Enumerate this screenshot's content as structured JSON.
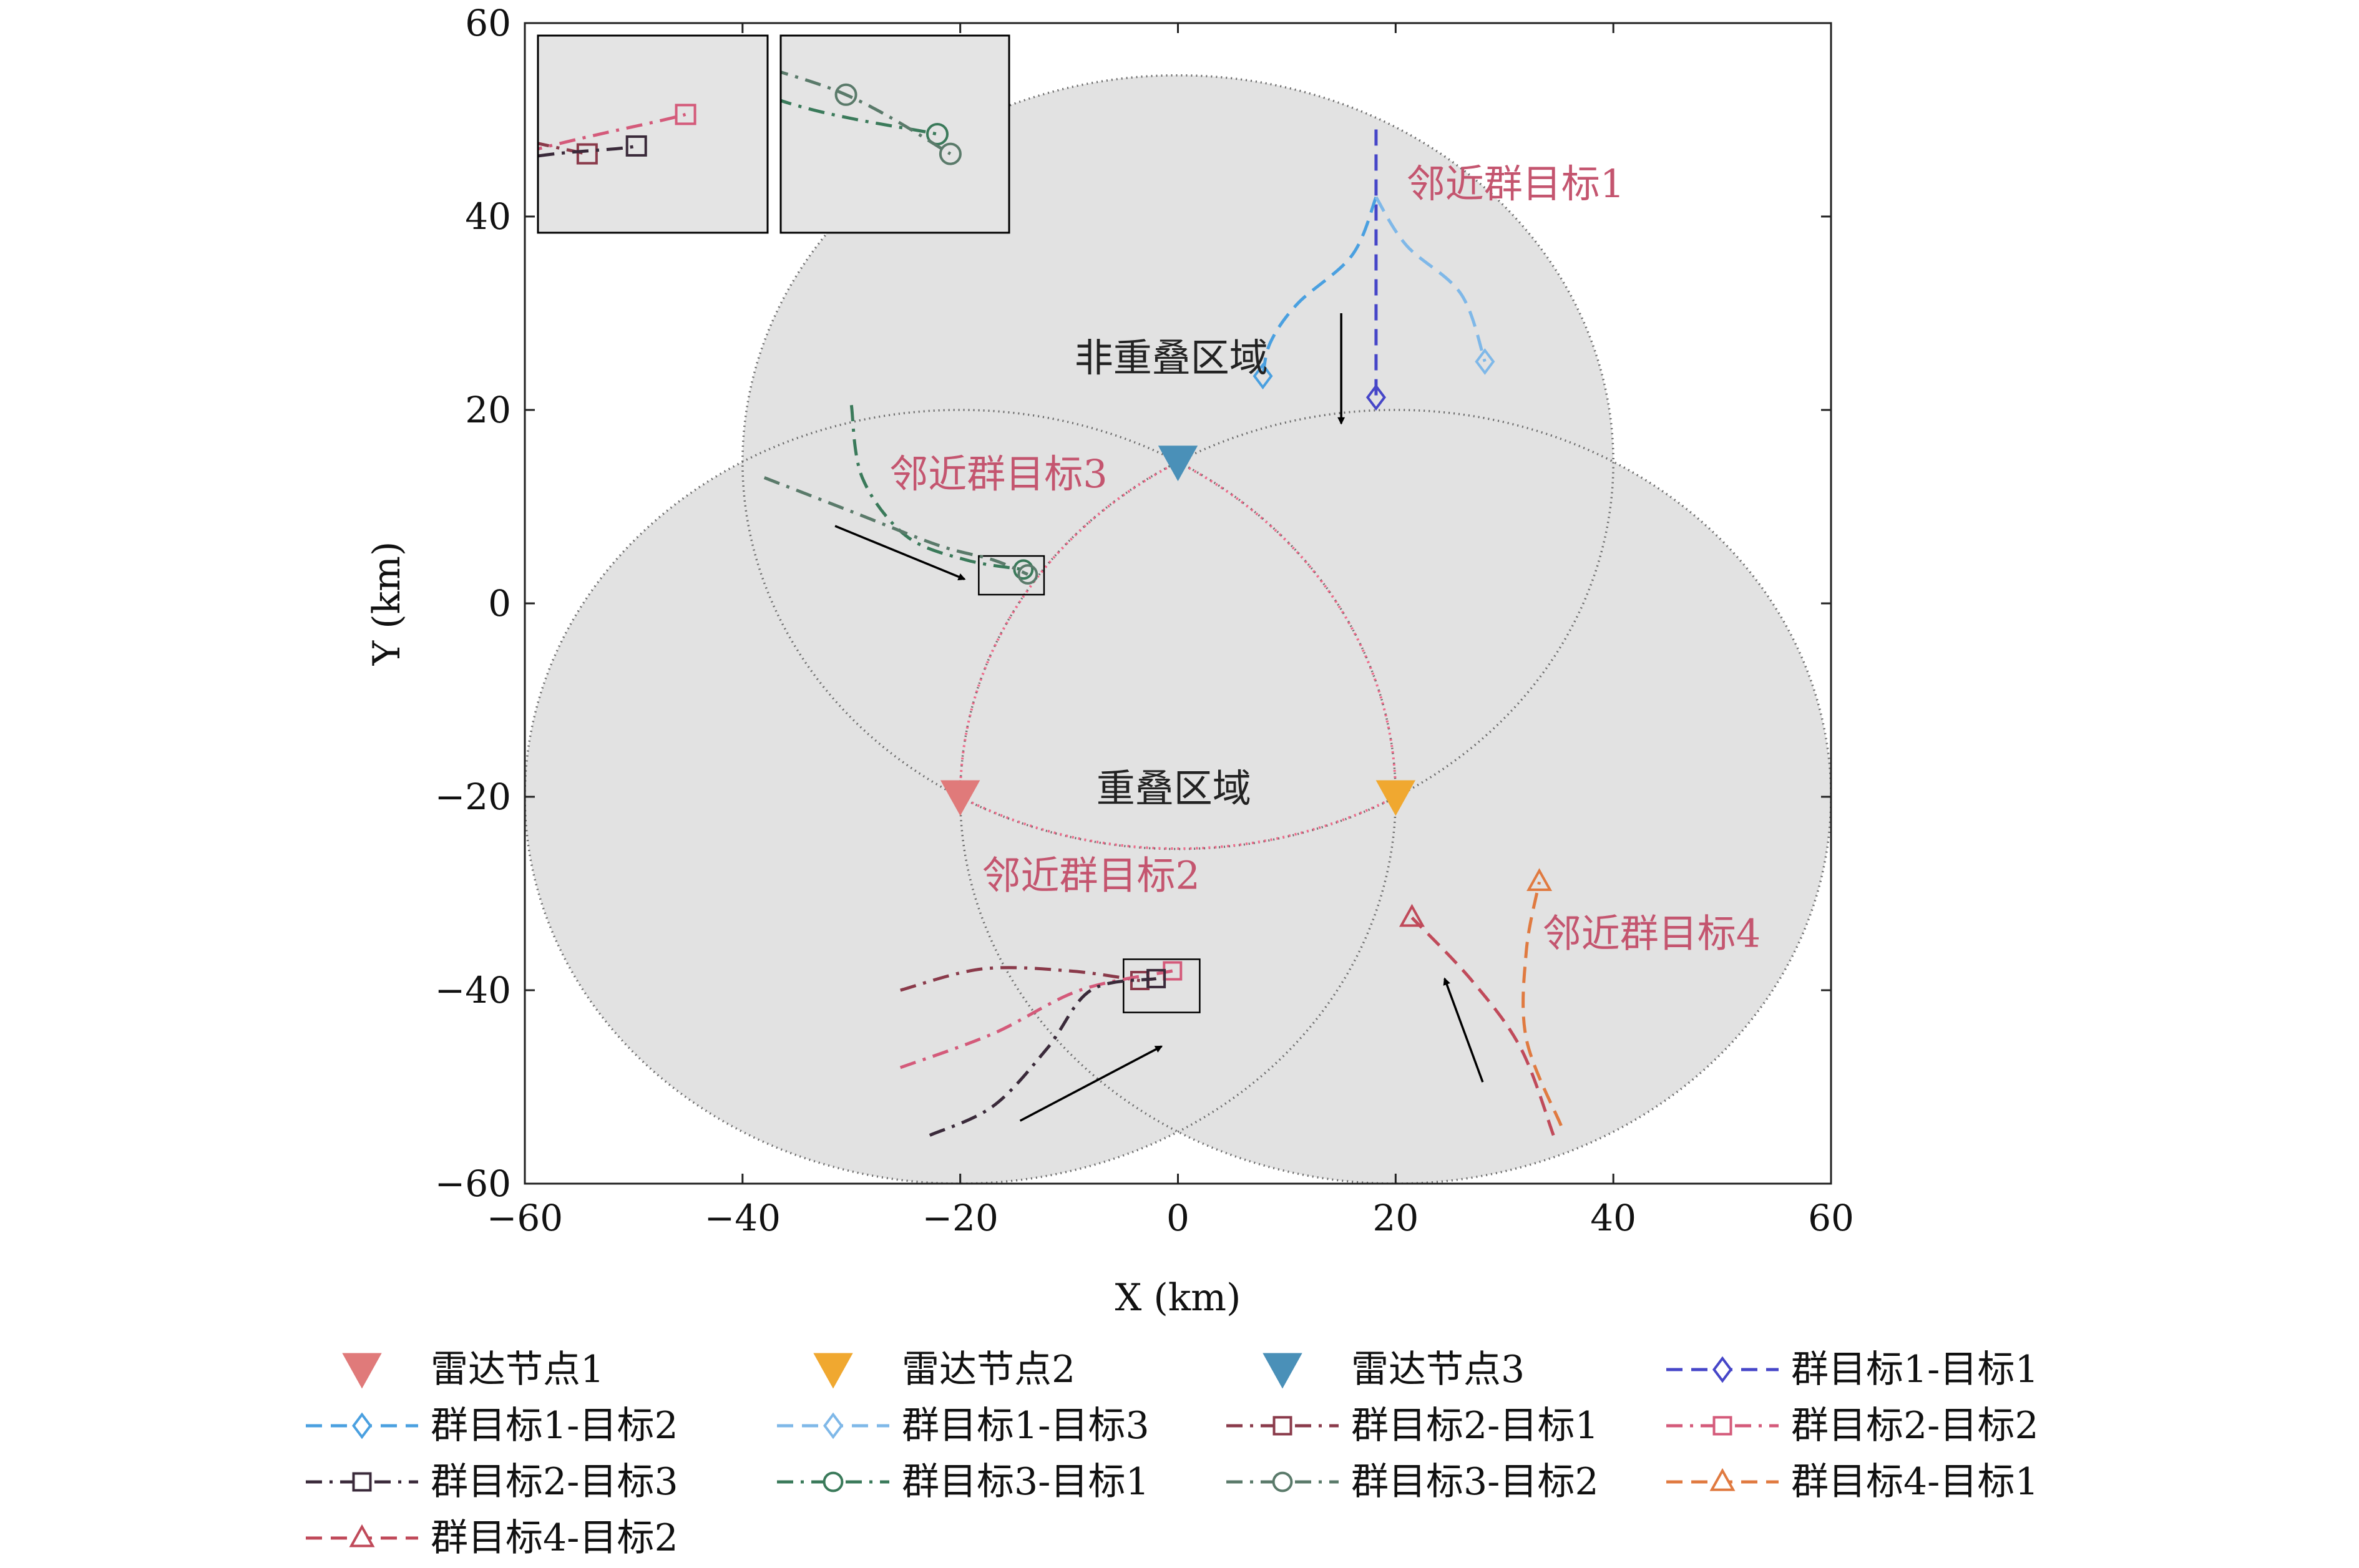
{
  "chart_data": {
    "type": "scatter",
    "title": "",
    "xlabel": "X (km)",
    "ylabel": "Y (km)",
    "xlim": [
      -60,
      60
    ],
    "ylim": [
      -60,
      60
    ],
    "xticks": [
      "−60",
      "−40",
      "−20",
      "0",
      "20",
      "40",
      "60"
    ],
    "yticks": [
      "−60",
      "−40",
      "−20",
      "0",
      "20",
      "40",
      "60"
    ],
    "grid": false,
    "legend_position": "bottom",
    "colors": {
      "radar1": "#e07a7a",
      "radar2": "#f0a830",
      "radar3": "#4a90b8",
      "coverage": "#e2e2e2",
      "overlap_boundary": "#f06a8a"
    },
    "radars": [
      {
        "name": "雷达节点1",
        "x": -20,
        "y": -20,
        "color": "#e07a7a"
      },
      {
        "name": "雷达节点2",
        "x": 20,
        "y": -20,
        "color": "#f0a830"
      },
      {
        "name": "雷达节点3",
        "x": 0,
        "y": 14.6,
        "color": "#4a90b8"
      }
    ],
    "coverage_radius_km": 40,
    "series": [
      {
        "name": "群目标1-目标1",
        "color": "#4646c8",
        "marker": "diamond",
        "dash": "dash",
        "points": [
          [
            18.2,
            49
          ],
          [
            18.2,
            38
          ],
          [
            18.2,
            30
          ],
          [
            18.2,
            21.3
          ]
        ]
      },
      {
        "name": "群目标1-目标2",
        "color": "#4aa0e0",
        "marker": "diamond",
        "dash": "dash",
        "points": [
          [
            18.2,
            42
          ],
          [
            16,
            36
          ],
          [
            11,
            31
          ],
          [
            8.5,
            27
          ],
          [
            7.8,
            23.5
          ]
        ]
      },
      {
        "name": "群目标1-目标3",
        "color": "#7fb8e8",
        "marker": "diamond",
        "dash": "dash",
        "points": [
          [
            18.2,
            42
          ],
          [
            21,
            37
          ],
          [
            26,
            32
          ],
          [
            28.2,
            25
          ]
        ]
      },
      {
        "name": "群目标2-目标1",
        "color": "#8a3a4a",
        "marker": "square",
        "dash": "dashdot",
        "points": [
          [
            -25.5,
            -40
          ],
          [
            -18,
            -37.8
          ],
          [
            -10,
            -38
          ],
          [
            -3.5,
            -39
          ]
        ]
      },
      {
        "name": "群目标2-目标2",
        "color": "#d45a7a",
        "marker": "square",
        "dash": "dashdot",
        "points": [
          [
            -25.5,
            -48
          ],
          [
            -17,
            -44.5
          ],
          [
            -9,
            -40
          ],
          [
            -0.5,
            -38
          ]
        ]
      },
      {
        "name": "群目标2-目标3",
        "color": "#3a2a3a",
        "marker": "square",
        "dash": "dashdot",
        "points": [
          [
            -22.8,
            -55
          ],
          [
            -17,
            -52
          ],
          [
            -12,
            -46
          ],
          [
            -8,
            -40
          ],
          [
            -2,
            -38.8
          ]
        ]
      },
      {
        "name": "群目标3-目标1",
        "color": "#3a7a5a",
        "marker": "circle",
        "dash": "dashdot",
        "points": [
          [
            -30,
            20.5
          ],
          [
            -29,
            13
          ],
          [
            -25,
            7
          ],
          [
            -19.5,
            4.5
          ],
          [
            -14.2,
            3.5
          ]
        ]
      },
      {
        "name": "群目标3-目标2",
        "color": "#5a7a6a",
        "marker": "circle",
        "dash": "dashdot",
        "points": [
          [
            -38,
            13
          ],
          [
            -30,
            9.5
          ],
          [
            -22,
            6
          ],
          [
            -17,
            4.5
          ],
          [
            -13.8,
            3
          ]
        ]
      },
      {
        "name": "群目标4-目标1",
        "color": "#e07a40",
        "marker": "triangle",
        "dash": "dash",
        "points": [
          [
            35.2,
            -54
          ],
          [
            32,
            -45
          ],
          [
            32,
            -36
          ],
          [
            33.2,
            -28.8
          ]
        ]
      },
      {
        "name": "群目标4-目标2",
        "color": "#c04a5a",
        "marker": "triangle",
        "dash": "dash",
        "points": [
          [
            34.5,
            -55
          ],
          [
            31.5,
            -46
          ],
          [
            27,
            -39
          ],
          [
            21.5,
            -32.5
          ]
        ]
      }
    ],
    "annotations": [
      {
        "text": "非重叠区域",
        "x": -9.5,
        "y": 24,
        "style": "dark"
      },
      {
        "text": "重叠区域",
        "x": -7.5,
        "y": -20.5,
        "style": "dark"
      },
      {
        "text": "邻近群目标1",
        "x": 21,
        "y": 42,
        "style": "pink"
      },
      {
        "text": "邻近群目标2",
        "x": -18,
        "y": -29.5,
        "style": "pink"
      },
      {
        "text": "邻近群目标3",
        "x": -26.5,
        "y": 12,
        "style": "pink"
      },
      {
        "text": "邻近群目标4",
        "x": 33.5,
        "y": -35.5,
        "style": "pink"
      }
    ],
    "legend": [
      "雷达节点1",
      "雷达节点2",
      "雷达节点3",
      "群目标1-目标1",
      "群目标1-目标2",
      "群目标1-目标3",
      "群目标2-目标1",
      "群目标2-目标2",
      "群目标2-目标3",
      "群目标3-目标1",
      "群目标3-目标2",
      "群目标4-目标1",
      "群目标4-目标2"
    ]
  }
}
